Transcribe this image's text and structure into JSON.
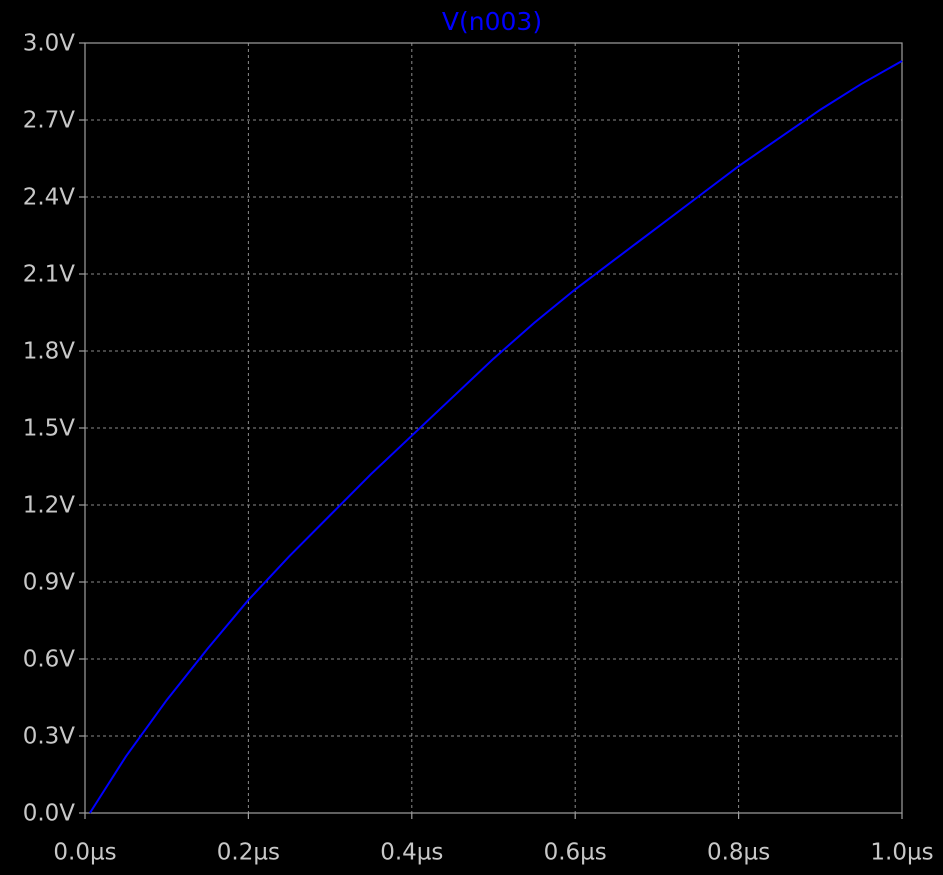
{
  "chart_data": {
    "type": "line",
    "x": [
      0.006,
      0.05,
      0.1,
      0.15,
      0.2,
      0.25,
      0.3,
      0.35,
      0.4,
      0.45,
      0.5,
      0.55,
      0.6,
      0.65,
      0.7,
      0.75,
      0.8,
      0.85,
      0.9,
      0.95,
      1.0
    ],
    "series": [
      {
        "name": "V(n003)",
        "color": "#0000ff",
        "values": [
          0,
          0.22,
          0.44,
          0.64,
          0.83,
          1.0,
          1.16,
          1.32,
          1.47,
          1.62,
          1.77,
          1.91,
          2.04,
          2.16,
          2.28,
          2.4,
          2.52,
          2.63,
          2.74,
          2.84,
          2.93
        ]
      }
    ],
    "xlim": [
      0,
      1.0
    ],
    "xticks": [
      {
        "value": 0,
        "label": "0.0µs"
      },
      {
        "value": 0.2,
        "label": "0.2µs"
      },
      {
        "value": 0.4,
        "label": "0.4µs"
      },
      {
        "value": 0.6,
        "label": "0.6µs"
      },
      {
        "value": 0.8,
        "label": "0.8µs"
      },
      {
        "value": 1.0,
        "label": "1.0µs"
      }
    ],
    "ylim": [
      0,
      3.0
    ],
    "yticks": [
      {
        "value": 0,
        "label": "0.0V"
      },
      {
        "value": 0.3,
        "label": "0.3V"
      },
      {
        "value": 0.6,
        "label": "0.6V"
      },
      {
        "value": 0.9,
        "label": "0.9V"
      },
      {
        "value": 1.2,
        "label": "1.2V"
      },
      {
        "value": 1.5,
        "label": "1.5V"
      },
      {
        "value": 1.8,
        "label": "1.8V"
      },
      {
        "value": 2.1,
        "label": "2.1V"
      },
      {
        "value": 2.4,
        "label": "2.4V"
      },
      {
        "value": 2.7,
        "label": "2.7V"
      },
      {
        "value": 3.0,
        "label": "3.0V"
      }
    ],
    "grid": true
  }
}
